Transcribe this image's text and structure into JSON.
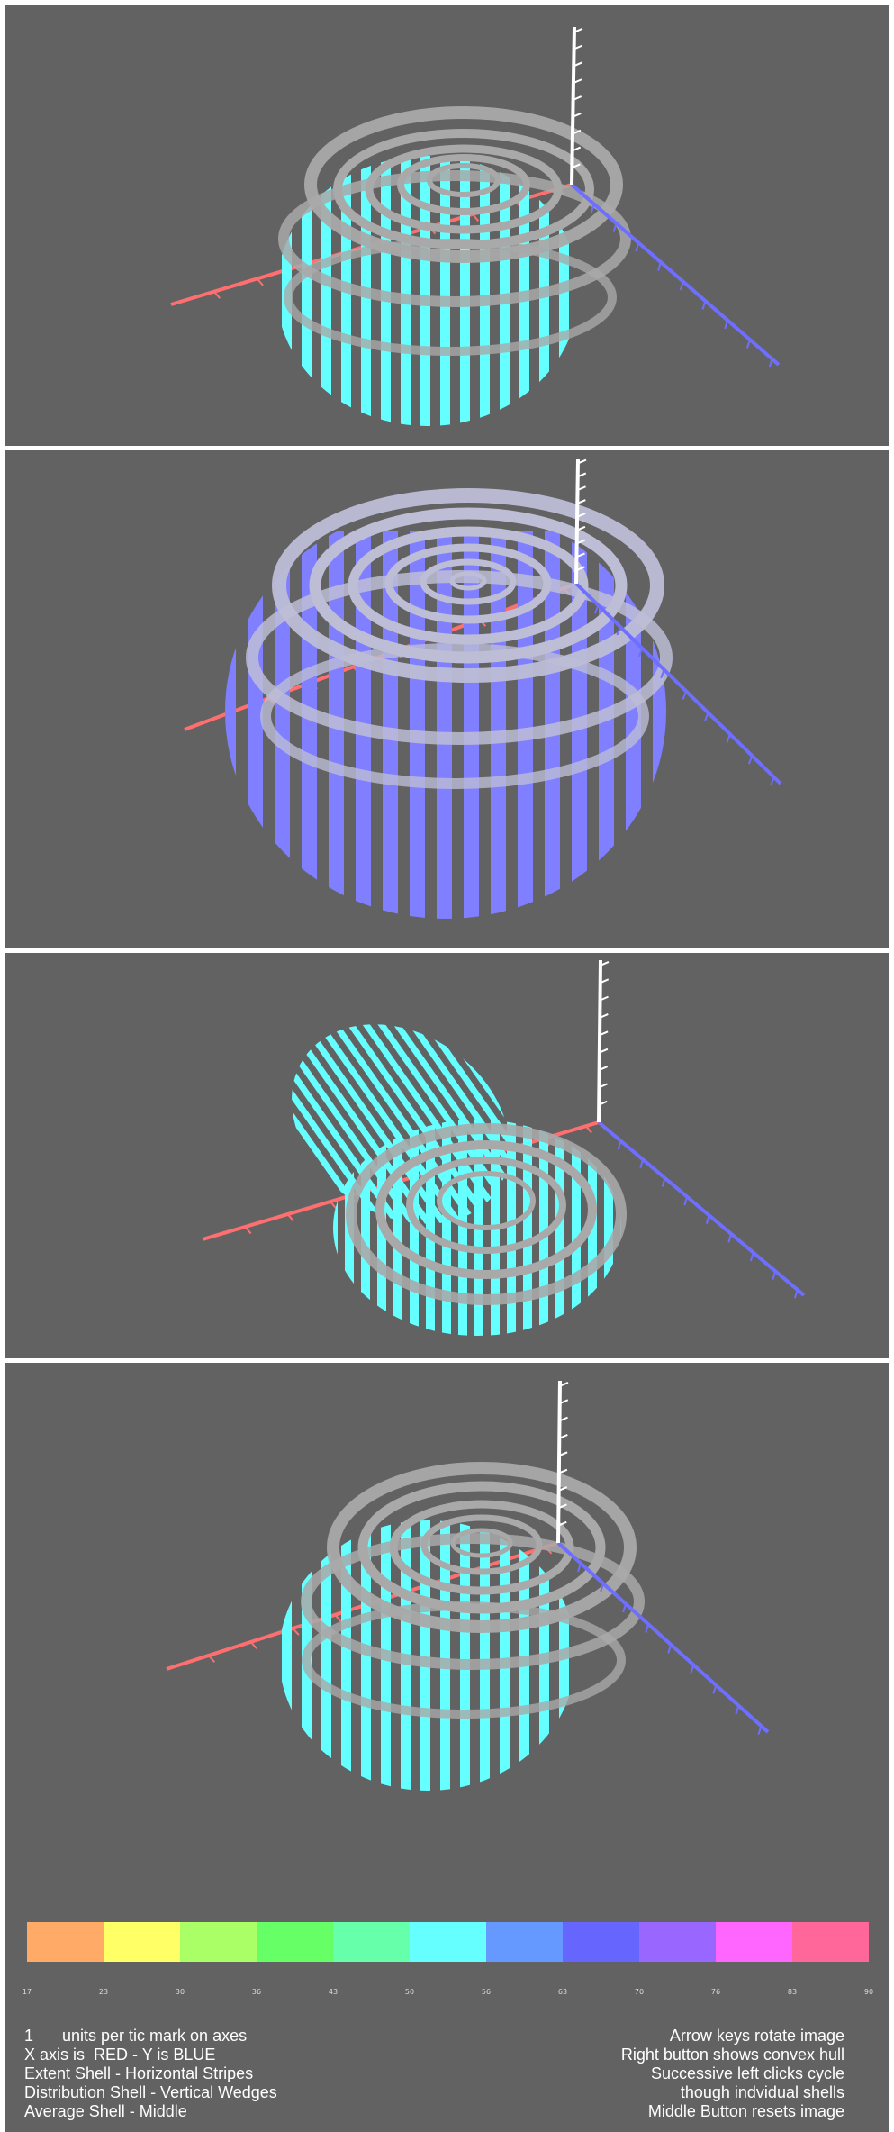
{
  "panels": [
    {
      "shell_color": "#66ffff",
      "ring_color": "#a9a9a9"
    },
    {
      "shell_color": "#7f7fff",
      "ring_color": "#bdbdd6"
    },
    {
      "shell_color": "#66ffff",
      "ring_color": "#a9a9a9"
    },
    {
      "shell_color": "#66ffff",
      "ring_color": "#a9a9a9"
    }
  ],
  "axis_colors": {
    "x": "#ff6f6f",
    "y": "#6f6fff",
    "z": "#ffffff"
  },
  "colorbar": {
    "colors": [
      "#ffaa66",
      "#ffff66",
      "#aaff66",
      "#66ff66",
      "#66ffaa",
      "#66ffff",
      "#6699ff",
      "#6666ff",
      "#9966ff",
      "#ff66ff",
      "#ff6699"
    ],
    "ticks": [
      "17",
      "23",
      "30",
      "36",
      "43",
      "50",
      "56",
      "63",
      "70",
      "76",
      "83",
      "90"
    ]
  },
  "info": {
    "units_value": "1",
    "units_text": "units per tic mark on axes",
    "axis_text": "X axis is  RED - Y is BLUE",
    "extent_text": "Extent Shell - Horizontal Stripes",
    "distribution_text": "Distribution Shell - Vertical Wedges",
    "average_text": "Average Shell - Middle",
    "arrow_text": "Arrow keys rotate image",
    "right_button_text": "Right button shows convex hull",
    "left_clicks_text": "Successive left clicks cycle",
    "shells_text": "though indvidual shells",
    "middle_button_text": "Middle Button resets image"
  }
}
